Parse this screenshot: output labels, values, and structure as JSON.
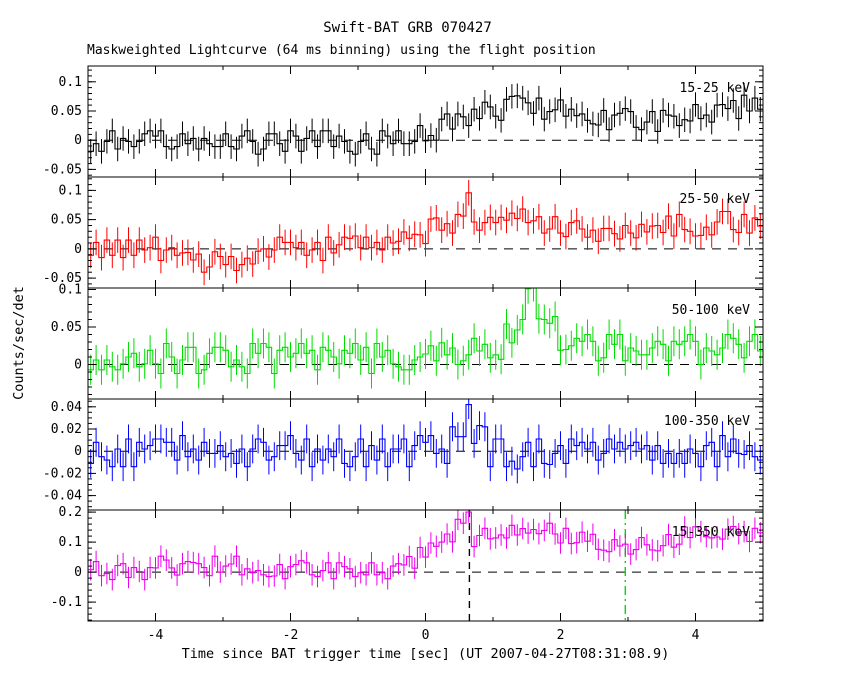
{
  "figure": {
    "title": "Swift-BAT GRB 070427",
    "subtitle": "Maskweighted Lightcurve (64 ms binning) using the flight position",
    "xlabel": "Time since BAT trigger time [sec] (UT 2007-04-27T08:31:08.9)",
    "ylabel": "Counts/sec/det"
  },
  "chart_data": {
    "type": "line",
    "style": "histogram-steps-with-errorbars",
    "title": "Swift-BAT GRB 070427",
    "subtitle": "Maskweighted Lightcurve (64 ms binning) using the flight position",
    "xlabel": "Time since BAT trigger time [sec] (UT 2007-04-27T08:31:08.9)",
    "ylabel": "Counts/sec/det",
    "grid": false,
    "legend_position": "in-panel-top-right",
    "xlim": [
      -5,
      5
    ],
    "bin_start": -4.96,
    "bin_step": 0.08,
    "x_major_ticks": [
      {
        "v": -4,
        "label": "-4"
      },
      {
        "v": -2,
        "label": "-2"
      },
      {
        "v": 0,
        "label": "0"
      },
      {
        "v": 2,
        "label": "2"
      },
      {
        "v": 4,
        "label": "4"
      }
    ],
    "x_minor_step": 1,
    "markers": [
      {
        "name": "burst-start-marker",
        "t": 0.65,
        "color": "#000000",
        "dash": "7 6",
        "panel": 4
      },
      {
        "name": "burst-stop-marker",
        "t": 2.96,
        "color": "#00dd00",
        "dash": "9 4 2 4",
        "panel": 4
      }
    ],
    "panels": [
      {
        "name": "15-25 keV",
        "color": "#000000",
        "ylim": [
          -0.063,
          0.127
        ],
        "minor_step": 0.01,
        "err": 0.021,
        "major_ticks": [
          {
            "v": 0.1,
            "label": "0.1"
          },
          {
            "v": 0.05,
            "label": "0.05"
          },
          {
            "v": 0,
            "label": "0"
          },
          {
            "v": -0.05,
            "label": "-0.05"
          }
        ],
        "values": [
          -0.019,
          -0.006,
          -0.019,
          -0.002,
          0.016,
          -0.015,
          0.003,
          -0.002,
          -0.011,
          -0.002,
          0.011,
          0.016,
          0.007,
          0.016,
          -0.011,
          -0.015,
          -0.011,
          0.011,
          -0.006,
          0.003,
          -0.015,
          0.003,
          -0.006,
          -0.011,
          -0.011,
          0.011,
          -0.011,
          -0.015,
          0.007,
          0.016,
          -0.002,
          -0.024,
          -0.015,
          0.011,
          0.011,
          -0.006,
          -0.019,
          0.016,
          0.007,
          -0.019,
          0.003,
          0.016,
          -0.011,
          0.016,
          0.016,
          -0.011,
          0.007,
          -0.002,
          -0.019,
          -0.024,
          -0.002,
          0.011,
          -0.015,
          -0.024,
          0.016,
          0.007,
          -0.006,
          0.016,
          -0.006,
          -0.006,
          -0.002,
          0.025,
          -0.001,
          0.008,
          0.0,
          0.036,
          0.045,
          0.019,
          0.045,
          0.04,
          0.025,
          0.053,
          0.037,
          0.065,
          0.057,
          0.041,
          0.034,
          0.07,
          0.075,
          0.076,
          0.072,
          0.064,
          0.046,
          0.072,
          0.036,
          0.049,
          0.052,
          0.069,
          0.041,
          0.053,
          0.042,
          0.045,
          0.034,
          0.028,
          0.026,
          0.051,
          0.018,
          0.043,
          0.046,
          0.054,
          0.049,
          0.022,
          0.018,
          0.031,
          0.049,
          0.015,
          0.051,
          0.043,
          0.041,
          0.025,
          0.035,
          0.033,
          0.061,
          0.037,
          0.043,
          0.031,
          0.06,
          0.061,
          0.054,
          0.068,
          0.037,
          0.077,
          0.05,
          0.072,
          0.053
        ]
      },
      {
        "name": "25-50 keV",
        "color": "#ff0000",
        "ylim": [
          -0.067,
          0.123
        ],
        "minor_step": 0.01,
        "err": 0.022,
        "major_ticks": [
          {
            "v": 0.1,
            "label": "0.1"
          },
          {
            "v": 0.05,
            "label": "0.05"
          },
          {
            "v": 0,
            "label": "0"
          },
          {
            "v": -0.05,
            "label": "-0.05"
          }
        ],
        "values": [
          -0.011,
          0.011,
          -0.015,
          0.015,
          -0.011,
          0.015,
          -0.015,
          0.015,
          -0.011,
          0.015,
          -0.002,
          0.002,
          0.02,
          -0.02,
          -0.002,
          0.002,
          -0.011,
          -0.007,
          -0.006,
          -0.019,
          -0.009,
          -0.04,
          -0.031,
          -0.005,
          -0.013,
          -0.027,
          -0.013,
          -0.037,
          -0.027,
          -0.016,
          -0.026,
          -0.004,
          0.0,
          -0.014,
          -0.002,
          0.02,
          0.011,
          0.011,
          0.002,
          0.011,
          -0.011,
          -0.002,
          0.011,
          -0.02,
          0.02,
          -0.007,
          0.007,
          0.02,
          0.018,
          0.022,
          0.002,
          0.02,
          0.002,
          0.011,
          -0.002,
          0.02,
          0.01,
          0.013,
          0.029,
          0.018,
          0.025,
          0.024,
          0.009,
          0.051,
          0.053,
          0.032,
          0.043,
          0.027,
          0.059,
          0.056,
          0.096,
          0.046,
          0.032,
          0.045,
          0.054,
          0.045,
          0.054,
          0.049,
          0.061,
          0.052,
          0.068,
          0.045,
          0.048,
          0.055,
          0.027,
          0.034,
          0.055,
          0.027,
          0.021,
          0.045,
          0.048,
          0.034,
          0.02,
          0.032,
          0.013,
          0.035,
          0.035,
          0.026,
          0.017,
          0.04,
          0.027,
          0.019,
          0.042,
          0.029,
          0.039,
          0.04,
          0.028,
          0.056,
          0.022,
          0.059,
          0.033,
          0.03,
          0.022,
          0.023,
          0.037,
          0.024,
          0.046,
          0.064,
          0.064,
          0.033,
          0.028,
          0.059,
          0.027,
          0.053,
          0.039
        ]
      },
      {
        "name": "50-100 keV",
        "color": "#00dd00",
        "ylim": [
          -0.046,
          0.102
        ],
        "minor_step": 0.01,
        "err": 0.02,
        "major_ticks": [
          {
            "v": 0.1,
            "label": "0.1"
          },
          {
            "v": 0.05,
            "label": "0.05"
          },
          {
            "v": 0,
            "label": "0"
          }
        ],
        "values": [
          -0.007,
          0.006,
          -0.007,
          0.006,
          -0.003,
          -0.007,
          0.001,
          0.01,
          0.015,
          -0.003,
          0.001,
          0.019,
          0.001,
          -0.012,
          0.028,
          0.01,
          -0.012,
          0.006,
          0.023,
          0.023,
          -0.012,
          -0.007,
          0.015,
          0.023,
          0.023,
          0.019,
          -0.003,
          0.006,
          -0.003,
          -0.012,
          0.028,
          0.015,
          0.028,
          0.023,
          -0.012,
          0.019,
          0.023,
          0.01,
          0.015,
          0.028,
          0.015,
          0.019,
          -0.007,
          0.023,
          0.019,
          0.01,
          0.001,
          0.019,
          0.015,
          0.028,
          0.006,
          0.023,
          -0.012,
          0.028,
          0.01,
          0.019,
          0.001,
          -0.003,
          -0.007,
          -0.007,
          0.006,
          0.01,
          0.014,
          0.025,
          0.005,
          0.029,
          0.013,
          0.022,
          0.0,
          0.005,
          0.013,
          0.035,
          0.018,
          0.027,
          0.009,
          0.013,
          0.007,
          0.054,
          0.029,
          0.046,
          0.06,
          0.101,
          0.104,
          0.061,
          0.06,
          0.055,
          0.064,
          0.019,
          0.02,
          0.025,
          0.035,
          0.031,
          0.04,
          0.031,
          0.005,
          0.009,
          0.04,
          0.027,
          0.04,
          0.005,
          0.022,
          0.018,
          0.013,
          0.013,
          0.022,
          0.031,
          0.027,
          0.005,
          0.031,
          0.027,
          0.031,
          0.04,
          0.031,
          0.0,
          0.022,
          0.018,
          0.013,
          0.022,
          0.04,
          0.035,
          0.027,
          0.009,
          0.031,
          0.04,
          0.018
        ]
      },
      {
        "name": "100-350 keV",
        "color": "#0000ff",
        "ylim": [
          -0.053,
          0.047
        ],
        "minor_step": 0.005,
        "err": 0.013,
        "major_ticks": [
          {
            "v": 0.04,
            "label": "0.04"
          },
          {
            "v": 0.02,
            "label": "0.02"
          },
          {
            "v": 0,
            "label": "0"
          },
          {
            "v": -0.02,
            "label": "-0.02"
          },
          {
            "v": -0.04,
            "label": "-0.04"
          }
        ],
        "values": [
          -0.011,
          0.008,
          -0.005,
          -0.008,
          -0.014,
          0.002,
          -0.014,
          0.011,
          -0.014,
          0.008,
          0.002,
          0.005,
          0.011,
          0.011,
          0.008,
          0.008,
          -0.008,
          0.014,
          -0.005,
          0.002,
          -0.008,
          0.008,
          -0.002,
          -0.002,
          0.005,
          -0.005,
          -0.002,
          -0.011,
          0.002,
          -0.014,
          0.002,
          0.011,
          0.008,
          -0.008,
          -0.005,
          0.005,
          0.005,
          0.014,
          -0.002,
          -0.008,
          0.011,
          -0.014,
          0.002,
          -0.008,
          0.002,
          -0.005,
          0.011,
          -0.011,
          -0.014,
          -0.005,
          0.011,
          -0.014,
          0.005,
          -0.008,
          0.011,
          -0.014,
          0.002,
          0.002,
          0.011,
          -0.014,
          0.005,
          0.014,
          0.008,
          0.014,
          -0.002,
          0.002,
          -0.011,
          0.022,
          0.013,
          0.013,
          0.042,
          0.007,
          0.023,
          0.022,
          -0.014,
          0.011,
          0.011,
          -0.014,
          -0.009,
          -0.016,
          -0.005,
          0.008,
          -0.014,
          0.011,
          -0.011,
          -0.012,
          -0.002,
          0.005,
          -0.011,
          0.011,
          0.005,
          0.008,
          0.002,
          0.008,
          -0.008,
          -0.002,
          0.011,
          0.002,
          0.008,
          0.002,
          0.005,
          0.008,
          0.002,
          0.005,
          -0.008,
          0.005,
          -0.011,
          -0.002,
          -0.011,
          -0.002,
          -0.011,
          0.002,
          -0.002,
          -0.014,
          0.005,
          0.008,
          -0.014,
          0.014,
          -0.005,
          0.011,
          -0.002,
          -0.003,
          0.005,
          -0.005,
          -0.008
        ]
      },
      {
        "name": "15-350 keV",
        "color": "#ee00ee",
        "ylim": [
          -0.163,
          0.207
        ],
        "minor_step": 0.02,
        "err": 0.036,
        "major_ticks": [
          {
            "v": 0.2,
            "label": "0.2"
          },
          {
            "v": 0.1,
            "label": "0.1"
          },
          {
            "v": 0,
            "label": "0"
          },
          {
            "v": -0.1,
            "label": "-0.1"
          }
        ],
        "values": [
          0.008,
          0.035,
          -0.012,
          -0.005,
          -0.025,
          0.022,
          0.028,
          -0.018,
          0.015,
          0.002,
          -0.025,
          0.015,
          0.014,
          0.053,
          0.04,
          0.014,
          -0.01,
          0.028,
          0.035,
          0.032,
          0.028,
          0.015,
          -0.012,
          0.053,
          0.0,
          0.02,
          0.027,
          0.053,
          -0.009,
          0.011,
          -0.002,
          0.005,
          -0.009,
          -0.015,
          -0.013,
          0.025,
          -0.022,
          0.018,
          0.025,
          0.038,
          0.031,
          -0.009,
          -0.015,
          0.005,
          0.031,
          -0.022,
          0.031,
          0.018,
          0.011,
          -0.015,
          -0.002,
          -0.009,
          0.031,
          -0.009,
          -0.002,
          -0.022,
          0.02,
          0.028,
          0.024,
          0.052,
          0.013,
          0.082,
          0.05,
          0.097,
          0.086,
          0.1,
          0.127,
          0.101,
          0.176,
          0.163,
          0.2,
          0.085,
          0.122,
          0.146,
          0.111,
          0.114,
          0.124,
          0.114,
          0.156,
          0.124,
          0.145,
          0.13,
          0.142,
          0.128,
          0.139,
          0.163,
          0.127,
          0.097,
          0.146,
          0.095,
          0.098,
          0.133,
          0.103,
          0.126,
          0.076,
          0.073,
          0.068,
          0.108,
          0.087,
          0.093,
          0.06,
          0.075,
          0.115,
          0.091,
          0.074,
          0.071,
          0.088,
          0.125,
          0.083,
          0.093,
          0.15,
          0.115,
          0.151,
          0.135,
          0.118,
          0.114,
          0.117,
          0.11,
          0.143,
          0.152,
          0.128,
          0.135,
          0.102,
          0.146,
          0.131
        ]
      }
    ]
  }
}
